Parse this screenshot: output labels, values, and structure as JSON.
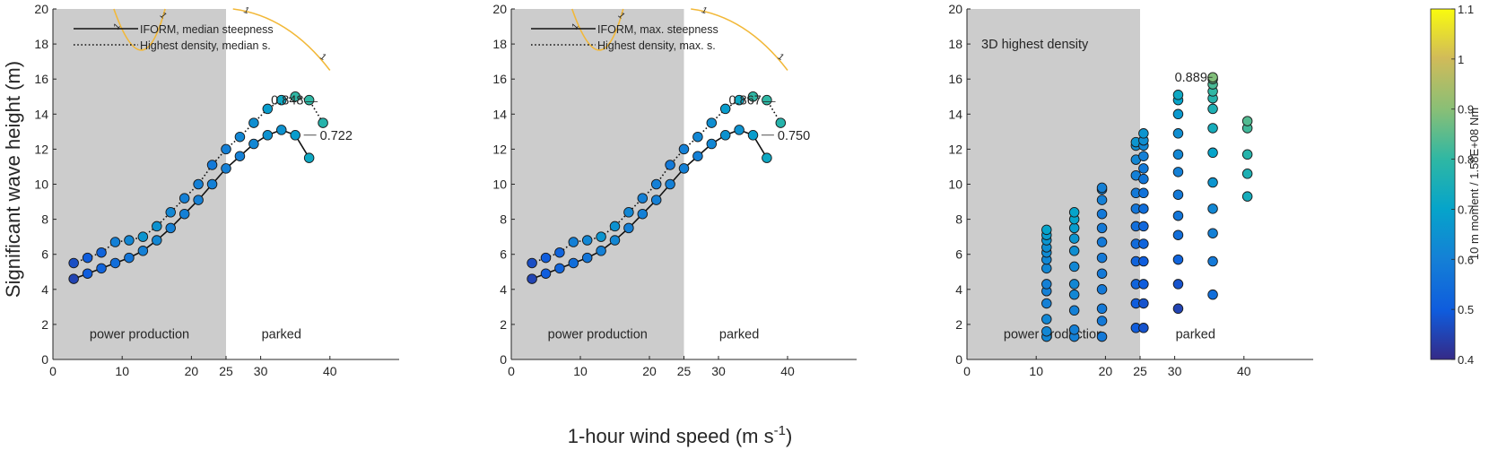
{
  "figure": {
    "ylabel": "Significant wave height (m)",
    "xlabel_main": "1-hour wind speed (m s",
    "xlabel_sup": "-1",
    "xlabel_end": ")"
  },
  "colorbar": {
    "label": "10 m moment / 1.58E+08 Nm",
    "range": [
      0.4,
      1.1
    ],
    "ticks": [
      "0.4",
      "0.5",
      "0.6",
      "0.7",
      "0.8",
      "0.9",
      "1",
      "1.1"
    ],
    "colormap": "parula"
  },
  "chart_data": [
    {
      "type": "scatter",
      "panel": 1,
      "xlim": [
        0,
        50
      ],
      "ylim": [
        0,
        20
      ],
      "xticks": [
        0,
        10,
        20,
        25,
        30,
        40
      ],
      "yticks": [
        0,
        2,
        4,
        6,
        8,
        10,
        12,
        14,
        16,
        18,
        20
      ],
      "shaded_region_x": [
        0,
        25
      ],
      "region_labels": [
        "power production",
        "parked"
      ],
      "legend": [
        "IFORM, median steepness",
        "Highest density, median s."
      ],
      "legend_placement": "top-left",
      "series": [
        {
          "name": "IFORM, median steepness",
          "line": "solid",
          "x": [
            3,
            5,
            7,
            9,
            11,
            13,
            15,
            17,
            19,
            21,
            23,
            25,
            27,
            29,
            31,
            33,
            35,
            37
          ],
          "y": [
            4.6,
            4.9,
            5.2,
            5.5,
            5.8,
            6.2,
            6.8,
            7.5,
            8.3,
            9.1,
            10.0,
            10.9,
            11.6,
            12.3,
            12.8,
            13.1,
            12.8,
            11.5
          ],
          "c": [
            0.45,
            0.5,
            0.52,
            0.55,
            0.57,
            0.6,
            0.62,
            0.6,
            0.6,
            0.6,
            0.6,
            0.6,
            0.6,
            0.62,
            0.65,
            0.65,
            0.68,
            0.72
          ]
        },
        {
          "name": "Highest density, median s.",
          "line": "dotted",
          "x": [
            3,
            5,
            7,
            9,
            11,
            13,
            15,
            17,
            19,
            21,
            23,
            25,
            27,
            29,
            31,
            33,
            35,
            37,
            39
          ],
          "y": [
            5.5,
            5.8,
            6.1,
            6.7,
            6.8,
            7.0,
            7.6,
            8.4,
            9.2,
            10.0,
            11.1,
            12.0,
            12.7,
            13.5,
            14.3,
            14.8,
            15.0,
            14.8,
            13.5
          ],
          "c": [
            0.47,
            0.5,
            0.52,
            0.6,
            0.62,
            0.66,
            0.65,
            0.62,
            0.6,
            0.6,
            0.58,
            0.6,
            0.62,
            0.64,
            0.68,
            0.72,
            0.8,
            0.8,
            0.78
          ]
        }
      ],
      "annotations": [
        {
          "text": "0.848",
          "x": 31.5,
          "y": 14.7
        },
        {
          "text": "0.722",
          "x": 37,
          "y": 12.8
        }
      ],
      "contour_label": "1"
    },
    {
      "type": "scatter",
      "panel": 2,
      "xlim": [
        0,
        50
      ],
      "ylim": [
        0,
        20
      ],
      "xticks": [
        0,
        10,
        20,
        25,
        30,
        40
      ],
      "yticks": [
        0,
        2,
        4,
        6,
        8,
        10,
        12,
        14,
        16,
        18,
        20
      ],
      "shaded_region_x": [
        0,
        25
      ],
      "region_labels": [
        "power production",
        "parked"
      ],
      "legend": [
        "IFORM, max. steepness",
        "Highest density, max. s."
      ],
      "legend_placement": "top-center",
      "series": [
        {
          "name": "IFORM, max. steepness",
          "line": "solid",
          "x": [
            3,
            5,
            7,
            9,
            11,
            13,
            15,
            17,
            19,
            21,
            23,
            25,
            27,
            29,
            31,
            33,
            35,
            37
          ],
          "y": [
            4.6,
            4.9,
            5.2,
            5.5,
            5.8,
            6.2,
            6.8,
            7.5,
            8.3,
            9.1,
            10.0,
            10.9,
            11.6,
            12.3,
            12.8,
            13.1,
            12.8,
            11.5
          ],
          "c": [
            0.45,
            0.5,
            0.52,
            0.55,
            0.57,
            0.6,
            0.62,
            0.6,
            0.6,
            0.6,
            0.6,
            0.6,
            0.6,
            0.62,
            0.65,
            0.65,
            0.68,
            0.72
          ]
        },
        {
          "name": "Highest density, max. s.",
          "line": "dotted",
          "x": [
            3,
            5,
            7,
            9,
            11,
            13,
            15,
            17,
            19,
            21,
            23,
            25,
            27,
            29,
            31,
            33,
            35,
            37,
            39
          ],
          "y": [
            5.5,
            5.8,
            6.1,
            6.7,
            6.8,
            7.0,
            7.6,
            8.4,
            9.2,
            10.0,
            11.1,
            12.0,
            12.7,
            13.5,
            14.3,
            14.8,
            15.0,
            14.8,
            13.5
          ],
          "c": [
            0.47,
            0.5,
            0.52,
            0.6,
            0.62,
            0.66,
            0.65,
            0.62,
            0.6,
            0.6,
            0.58,
            0.6,
            0.62,
            0.64,
            0.68,
            0.72,
            0.8,
            0.8,
            0.78
          ]
        }
      ],
      "annotations": [
        {
          "text": "0.867",
          "x": 31.5,
          "y": 14.7
        },
        {
          "text": "0.750",
          "x": 37,
          "y": 12.8
        }
      ],
      "contour_label": "1"
    },
    {
      "type": "scatter",
      "panel": 3,
      "title": "3D highest density",
      "xlim": [
        0,
        50
      ],
      "ylim": [
        0,
        20
      ],
      "xticks": [
        0,
        10,
        20,
        25,
        30,
        40
      ],
      "yticks": [
        0,
        2,
        4,
        6,
        8,
        10,
        12,
        14,
        16,
        18,
        20
      ],
      "shaded_region_x": [
        0,
        25
      ],
      "region_labels": [
        "power production",
        "parked"
      ],
      "columns": [
        {
          "x": 11.5,
          "y": [
            1.3,
            1.6,
            2.3,
            3.2,
            3.9,
            4.3,
            5.2,
            5.7,
            6.1,
            6.4,
            6.8,
            7.1,
            7.4
          ],
          "c": [
            0.62,
            0.62,
            0.62,
            0.6,
            0.6,
            0.6,
            0.62,
            0.62,
            0.63,
            0.64,
            0.66,
            0.68,
            0.7
          ]
        },
        {
          "x": 15.5,
          "y": [
            1.3,
            1.7,
            2.8,
            3.7,
            4.3,
            5.3,
            6.2,
            6.9,
            7.5,
            8.0,
            8.4
          ],
          "c": [
            0.6,
            0.6,
            0.6,
            0.62,
            0.62,
            0.62,
            0.64,
            0.66,
            0.68,
            0.7,
            0.7
          ]
        },
        {
          "x": 19.5,
          "y": [
            1.3,
            2.2,
            2.9,
            4.0,
            4.9,
            5.8,
            6.7,
            7.5,
            8.3,
            9.1,
            9.7,
            9.8
          ],
          "c": [
            0.58,
            0.58,
            0.58,
            0.58,
            0.58,
            0.58,
            0.58,
            0.58,
            0.58,
            0.6,
            0.6,
            0.6
          ]
        },
        {
          "x": 24.4,
          "y": [
            1.8,
            3.2,
            4.3,
            5.6,
            6.6,
            7.6,
            8.6,
            9.5,
            10.5,
            11.4,
            12.2,
            12.4
          ],
          "c": [
            0.5,
            0.5,
            0.52,
            0.52,
            0.54,
            0.55,
            0.57,
            0.58,
            0.6,
            0.62,
            0.64,
            0.66
          ]
        },
        {
          "x": 25.5,
          "y": [
            1.8,
            3.2,
            4.3,
            5.6,
            6.6,
            7.6,
            8.6,
            9.5,
            10.3,
            10.9,
            11.6,
            12.2,
            12.5,
            12.9
          ],
          "c": [
            0.48,
            0.48,
            0.5,
            0.5,
            0.52,
            0.53,
            0.55,
            0.56,
            0.57,
            0.58,
            0.6,
            0.62,
            0.64,
            0.66
          ]
        },
        {
          "x": 30.5,
          "y": [
            2.9,
            4.3,
            5.7,
            7.1,
            8.2,
            9.4,
            10.7,
            11.7,
            12.9,
            14.0,
            14.8,
            15.1
          ],
          "c": [
            0.45,
            0.48,
            0.52,
            0.55,
            0.57,
            0.58,
            0.6,
            0.62,
            0.64,
            0.67,
            0.7,
            0.72
          ]
        },
        {
          "x": 35.5,
          "y": [
            3.7,
            5.6,
            7.2,
            8.6,
            10.1,
            11.8,
            13.2,
            14.3,
            14.9,
            15.3,
            15.7,
            16.0,
            16.1
          ],
          "c": [
            0.55,
            0.58,
            0.6,
            0.62,
            0.66,
            0.7,
            0.74,
            0.76,
            0.78,
            0.8,
            0.83,
            0.86,
            0.89
          ]
        },
        {
          "x": 40.5,
          "y": [
            9.3,
            10.6,
            11.7,
            13.2,
            13.6
          ],
          "c": [
            0.74,
            0.76,
            0.78,
            0.82,
            0.84
          ]
        }
      ],
      "annotations": [
        {
          "text": "0.889",
          "x": 30,
          "y": 16.1
        }
      ]
    }
  ]
}
